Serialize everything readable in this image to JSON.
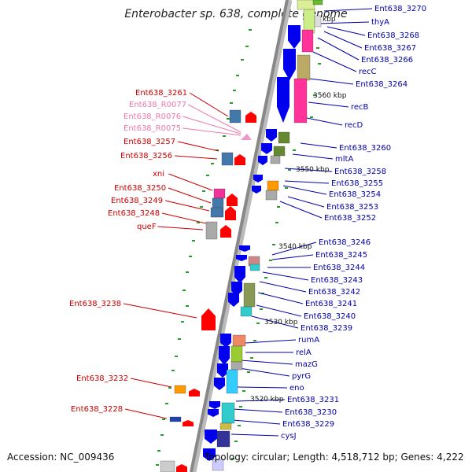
{
  "title": "Enterobacter sp. 638, complete genome",
  "accession": "Accession: NC_009436",
  "topology": "Topology: circular; Length: 4,518,712 bp; Genes: 4,222",
  "colors": {
    "minus_label": "#cc0000",
    "minus_rna_label": "#ee77aa",
    "plus_label": "#0000aa",
    "backbone": "#888888",
    "tick": "#33aa33"
  },
  "kbp_marks": [
    "3560 kbp",
    "3550 kbp",
    "3540 kbp",
    "3530 kbp",
    "3520 kbp",
    "kbp"
  ],
  "left_labels": [
    "Ent638_3261",
    "Ent638_R0077",
    "Ent638_R0076",
    "Ent638_R0075",
    "Ent638_3257",
    "Ent638_3256",
    "xni",
    "Ent638_3250",
    "Ent638_3249",
    "Ent638_3248",
    "queF",
    "Ent638_3238",
    "Ent638_3232",
    "Ent638_3228"
  ],
  "right_labels": [
    "Ent638_3270",
    "thyA",
    "Ent638_3268",
    "Ent638_3267",
    "Ent638_3266",
    "recC",
    "Ent638_3264",
    "recB",
    "recD",
    "Ent638_3260",
    "mltA",
    "Ent638_3258",
    "Ent638_3255",
    "Ent638_3254",
    "Ent638_3253",
    "Ent638_3252",
    "Ent638_3246",
    "Ent638_3245",
    "Ent638_3244",
    "Ent638_3243",
    "Ent638_3242",
    "Ent638_3241",
    "Ent638_3240",
    "Ent638_3239",
    "rumA",
    "relA",
    "mazG",
    "pyrG",
    "eno",
    "Ent638_3231",
    "Ent638_3230",
    "Ent638_3229",
    "cysJ"
  ]
}
